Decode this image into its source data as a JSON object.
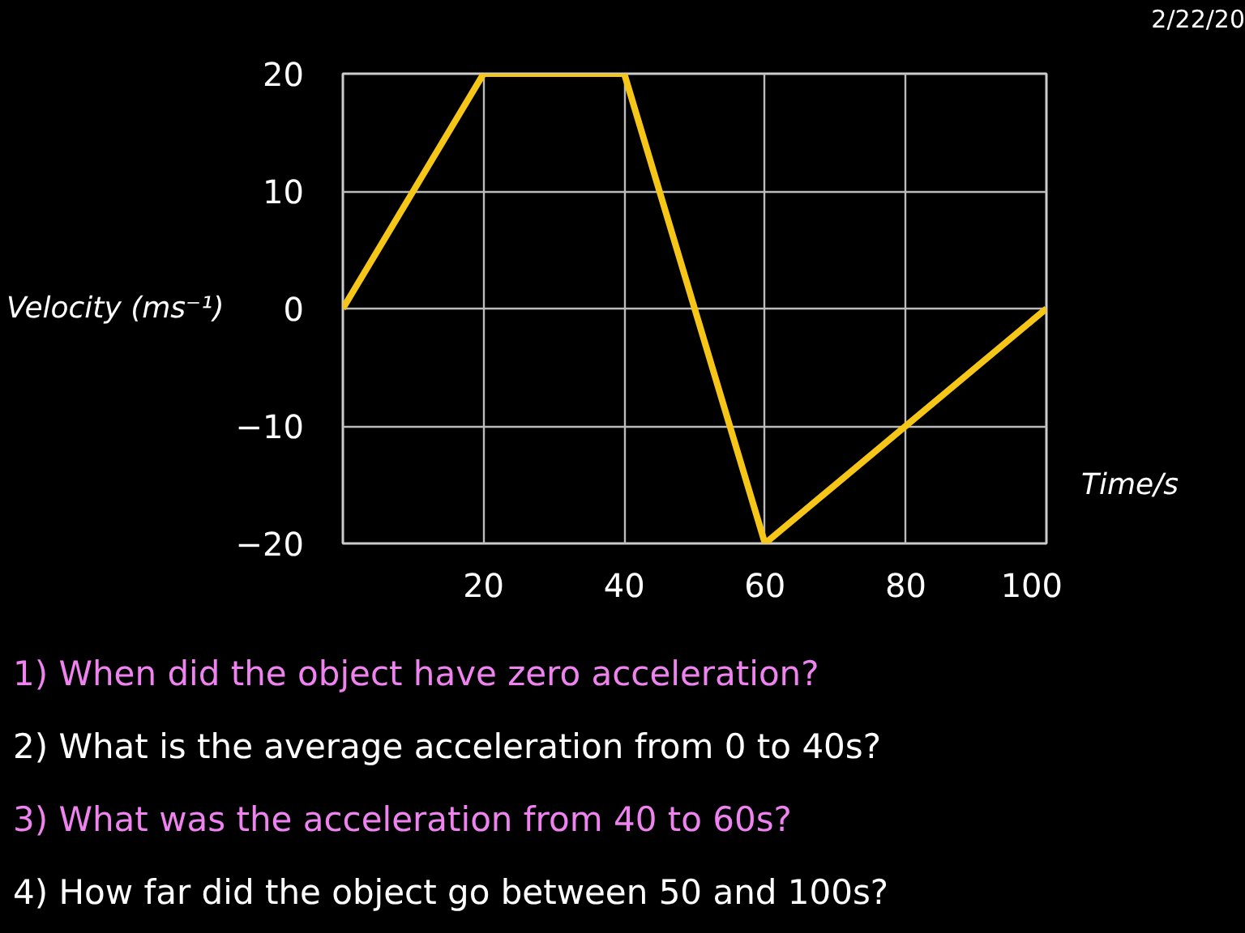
{
  "chart_data": {
    "type": "line",
    "xlabel": "Time/s",
    "ylabel": "Velocity (ms⁻¹)",
    "x": [
      0,
      20,
      40,
      60,
      100
    ],
    "series": [
      {
        "color": "#f5c518",
        "values": [
          0,
          20,
          20,
          -20,
          0
        ]
      }
    ],
    "xlim": [
      0,
      100
    ],
    "ylim": [
      -20,
      20
    ],
    "xticks": [
      20,
      40,
      60,
      80,
      100
    ],
    "yticks": [
      -20,
      -10,
      0,
      10,
      20
    ],
    "grid": true,
    "annotations": [
      "2/22/20",
      "1)  When did the object have zero acceleration?",
      "2)  What is the average acceleration from 0 to 40s?",
      "3)  What was the acceleration from 40 to 60s?",
      "4)  How far did the object go between 50 and 100s?"
    ]
  }
}
